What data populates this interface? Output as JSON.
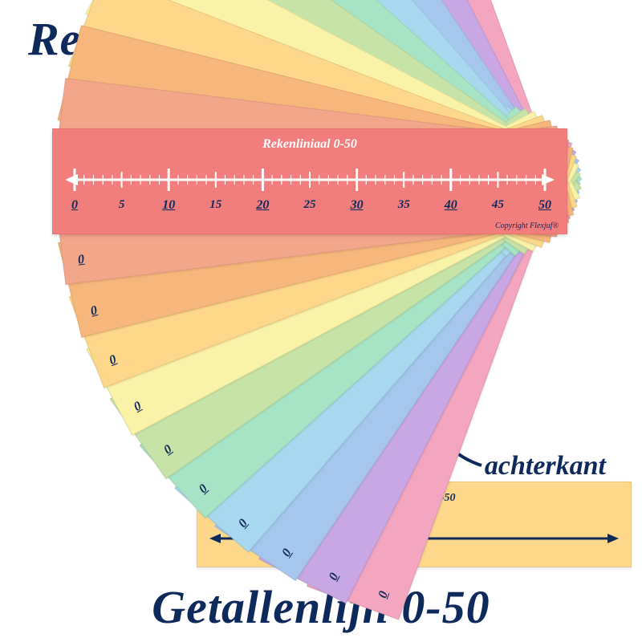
{
  "title_top": "Rekenlinialen",
  "title_bottom": "Getallenlijn 0-50",
  "label_back": "achterkant",
  "front_ruler": {
    "caption": "Rekenliniaal 0-50",
    "bg_color": "#f27d7d",
    "line_color": "#ffffff",
    "number_color": "#0e2a5c",
    "range": [
      0,
      50
    ],
    "major_step": 10,
    "label_step": 5,
    "minor_step": 1,
    "labels": [
      {
        "v": 0,
        "major": true
      },
      {
        "v": 5,
        "major": false
      },
      {
        "v": 10,
        "major": true
      },
      {
        "v": 15,
        "major": false
      },
      {
        "v": 20,
        "major": true
      },
      {
        "v": 25,
        "major": false
      },
      {
        "v": 30,
        "major": true
      },
      {
        "v": 35,
        "major": false
      },
      {
        "v": 40,
        "major": true
      },
      {
        "v": 45,
        "major": false
      },
      {
        "v": 50,
        "major": true
      }
    ],
    "copyright": "Copyright Flexjuf®"
  },
  "back_ruler": {
    "caption": "Rekenliniaal 0-50",
    "bg_color": "#fdd88a",
    "line_color": "#0e2a5c"
  },
  "fan_rulers": [
    {
      "color": "#f4a6c0",
      "angle": -70,
      "z": 1
    },
    {
      "color": "#c9a7e4",
      "angle": -63,
      "z": 2
    },
    {
      "color": "#a7c6ed",
      "angle": -56,
      "z": 3
    },
    {
      "color": "#a7d8ed",
      "angle": -49,
      "z": 4
    },
    {
      "color": "#a7e4c6",
      "angle": -42,
      "z": 5
    },
    {
      "color": "#c6e4a7",
      "angle": -35,
      "z": 6
    },
    {
      "color": "#f9f2a7",
      "angle": -28,
      "z": 7
    },
    {
      "color": "#fdd88a",
      "angle": -21,
      "z": 8
    },
    {
      "color": "#f7b67a",
      "angle": -14,
      "z": 9
    },
    {
      "color": "#f4a68a",
      "angle": -7,
      "z": 10
    },
    {
      "color": "#f4a68a",
      "angle": 7,
      "z": 10
    },
    {
      "color": "#f7b67a",
      "angle": 14,
      "z": 9
    },
    {
      "color": "#fdd88a",
      "angle": 21,
      "z": 8
    },
    {
      "color": "#f9f2a7",
      "angle": 28,
      "z": 7
    },
    {
      "color": "#c6e4a7",
      "angle": 35,
      "z": 6
    },
    {
      "color": "#a7e4c6",
      "angle": 42,
      "z": 5
    },
    {
      "color": "#a7d8ed",
      "angle": 49,
      "z": 4
    },
    {
      "color": "#a7c6ed",
      "angle": 56,
      "z": 3
    },
    {
      "color": "#c9a7e4",
      "angle": 63,
      "z": 2
    },
    {
      "color": "#f4a6c0",
      "angle": 70,
      "z": 1
    }
  ],
  "zero_label": "0",
  "title_color": "#0e2a5c",
  "arrow_color": "#0e2a5c"
}
